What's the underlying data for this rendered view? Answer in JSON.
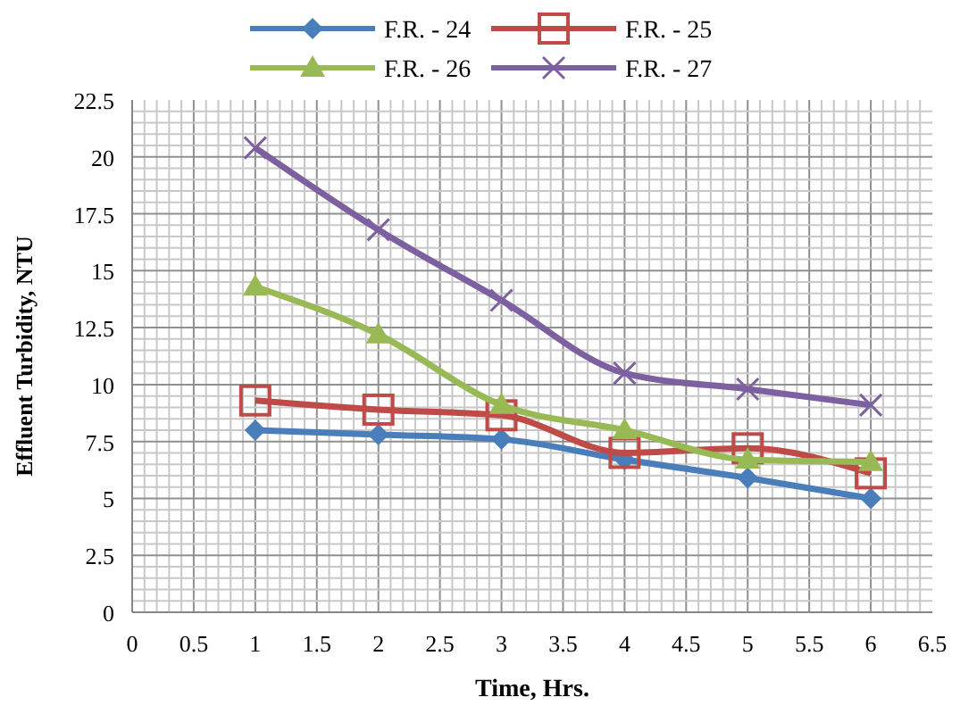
{
  "chart_data": {
    "type": "line",
    "xlabel": "Time, Hrs.",
    "ylabel": "Effluent Turbidity, NTU",
    "x": [
      1,
      2,
      3,
      4,
      5,
      6
    ],
    "series": [
      {
        "name": "F.R. - 24",
        "color": "#4a7ebb",
        "marker": "diamond",
        "values": [
          8.0,
          7.8,
          7.6,
          6.7,
          5.9,
          5.0
        ]
      },
      {
        "name": "F.R. - 25",
        "color": "#be4b48",
        "marker": "square",
        "values": [
          9.3,
          8.9,
          8.65,
          7.0,
          7.2,
          6.1
        ]
      },
      {
        "name": "F.R. - 26",
        "color": "#98b954",
        "marker": "triangle",
        "values": [
          14.3,
          12.2,
          9.1,
          8.0,
          6.7,
          6.6
        ]
      },
      {
        "name": "F.R. - 27",
        "color": "#7d60a0",
        "marker": "cross",
        "values": [
          20.4,
          16.8,
          13.7,
          10.5,
          9.8,
          9.1
        ]
      }
    ],
    "xlim": [
      0,
      6.5
    ],
    "xticks": [
      0,
      0.5,
      1,
      1.5,
      2,
      2.5,
      3,
      3.5,
      4,
      4.5,
      5,
      5.5,
      6,
      6.5
    ],
    "ylim": [
      0,
      22.5
    ],
    "yticks": [
      0,
      2.5,
      5,
      7.5,
      10,
      12.5,
      15,
      17.5,
      20,
      22.5
    ],
    "grid": true,
    "legend": "top"
  }
}
